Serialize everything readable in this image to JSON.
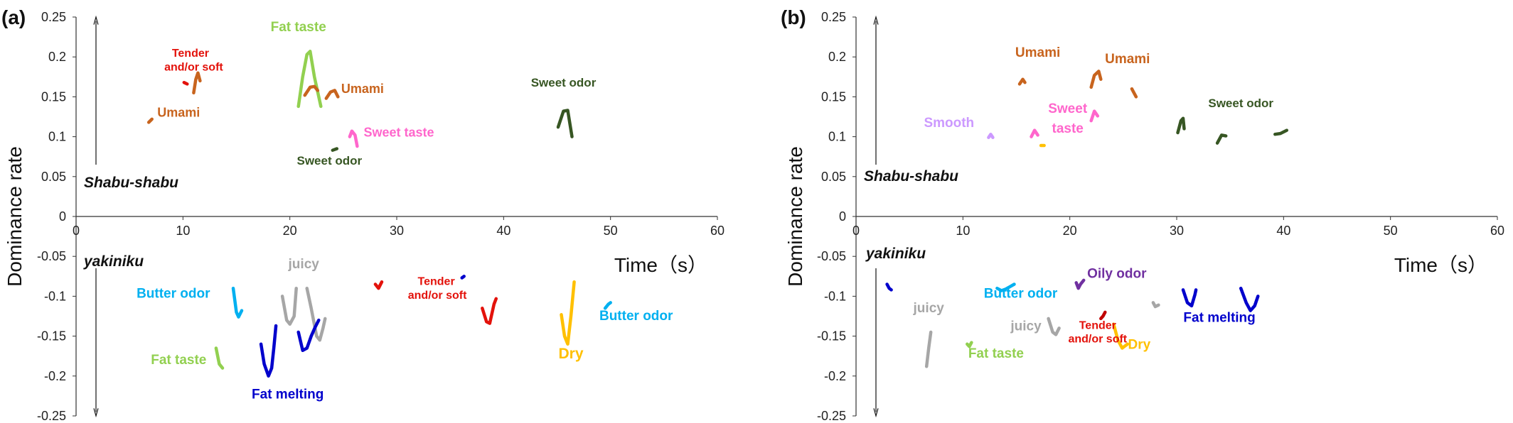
{
  "chart_data": [
    {
      "type": "line",
      "panel_label": "(a)",
      "xlabel": "Time（s）",
      "ylabel": "Dominance rate",
      "xlim": [
        0,
        60
      ],
      "ylim": [
        -0.25,
        0.25
      ],
      "x_ticks": [
        "0",
        "10",
        "20",
        "30",
        "40",
        "50",
        "60"
      ],
      "y_ticks": [
        "0.25",
        "0.2",
        "0.15",
        "0.1",
        "0.05",
        "0",
        "-0.05",
        "-0.1",
        "-0.15",
        "-0.2",
        "-0.25"
      ],
      "group_labels": {
        "top": "Shabu-shabu",
        "bottom": "yakiniku"
      },
      "series": [
        {
          "color": "#E3120B",
          "points": [
            [
              10.1,
              0.168
            ],
            [
              10.4,
              0.166
            ]
          ]
        },
        {
          "color": "#C8641E",
          "points": [
            [
              11.0,
              0.155
            ],
            [
              11.2,
              0.172
            ],
            [
              11.4,
              0.18
            ],
            [
              11.6,
              0.17
            ]
          ]
        },
        {
          "color": "#C8641E",
          "points": [
            [
              6.8,
              0.118
            ],
            [
              7.1,
              0.122
            ]
          ]
        },
        {
          "color": "#92D050",
          "points": [
            [
              20.8,
              0.138
            ],
            [
              21.2,
              0.175
            ],
            [
              21.6,
              0.203
            ],
            [
              21.9,
              0.207
            ],
            [
              22.3,
              0.175
            ],
            [
              22.9,
              0.138
            ]
          ]
        },
        {
          "color": "#C8641E",
          "points": [
            [
              21.4,
              0.152
            ],
            [
              21.9,
              0.162
            ],
            [
              22.3,
              0.163
            ],
            [
              22.6,
              0.158
            ]
          ]
        },
        {
          "color": "#C8641E",
          "points": [
            [
              23.4,
              0.148
            ],
            [
              23.8,
              0.156
            ],
            [
              24.2,
              0.158
            ],
            [
              24.5,
              0.15
            ]
          ]
        },
        {
          "color": "#375623",
          "points": [
            [
              24.0,
              0.083
            ],
            [
              24.4,
              0.085
            ]
          ]
        },
        {
          "color": "#FF66CC",
          "points": [
            [
              25.6,
              0.1
            ],
            [
              25.8,
              0.107
            ],
            [
              26.1,
              0.102
            ],
            [
              26.3,
              0.088
            ]
          ]
        },
        {
          "color": "#375623",
          "points": [
            [
              45.1,
              0.112
            ],
            [
              45.6,
              0.132
            ],
            [
              46.0,
              0.133
            ],
            [
              46.4,
              0.1
            ]
          ]
        },
        {
          "color": "#00B0F0",
          "points": [
            [
              14.7,
              -0.09
            ],
            [
              15.0,
              -0.12
            ],
            [
              15.2,
              -0.126
            ],
            [
              15.5,
              -0.118
            ]
          ]
        },
        {
          "color": "#92D050",
          "points": [
            [
              13.1,
              -0.165
            ],
            [
              13.4,
              -0.185
            ],
            [
              13.7,
              -0.19
            ]
          ]
        },
        {
          "color": "#A6A6A6",
          "points": [
            [
              19.3,
              -0.1
            ],
            [
              19.7,
              -0.13
            ],
            [
              20.0,
              -0.135
            ],
            [
              20.4,
              -0.125
            ],
            [
              20.6,
              -0.09
            ]
          ]
        },
        {
          "color": "#A6A6A6",
          "points": [
            [
              21.6,
              -0.09
            ],
            [
              22.0,
              -0.115
            ],
            [
              22.5,
              -0.15
            ],
            [
              22.8,
              -0.155
            ],
            [
              23.1,
              -0.14
            ],
            [
              23.3,
              -0.128
            ]
          ]
        },
        {
          "color": "#0000CC",
          "points": [
            [
              17.3,
              -0.16
            ],
            [
              17.6,
              -0.185
            ],
            [
              18.0,
              -0.2
            ],
            [
              18.3,
              -0.19
            ],
            [
              18.5,
              -0.165
            ],
            [
              18.7,
              -0.137
            ]
          ]
        },
        {
          "color": "#0000CC",
          "points": [
            [
              20.8,
              -0.145
            ],
            [
              21.2,
              -0.168
            ],
            [
              21.6,
              -0.165
            ],
            [
              22.0,
              -0.15
            ],
            [
              22.4,
              -0.138
            ],
            [
              22.7,
              -0.13
            ]
          ]
        },
        {
          "color": "#E3120B",
          "points": [
            [
              28.0,
              -0.085
            ],
            [
              28.3,
              -0.09
            ],
            [
              28.6,
              -0.082
            ]
          ]
        },
        {
          "color": "#0000CC",
          "points": [
            [
              36.1,
              -0.077
            ],
            [
              36.3,
              -0.075
            ]
          ]
        },
        {
          "color": "#E3120B",
          "points": [
            [
              38.0,
              -0.115
            ],
            [
              38.4,
              -0.132
            ],
            [
              38.7,
              -0.134
            ],
            [
              39.1,
              -0.11
            ],
            [
              39.3,
              -0.103
            ]
          ]
        },
        {
          "color": "#FFC000",
          "points": [
            [
              46.6,
              -0.082
            ],
            [
              46.3,
              -0.125
            ],
            [
              46.0,
              -0.16
            ],
            [
              45.7,
              -0.15
            ],
            [
              45.4,
              -0.123
            ]
          ]
        },
        {
          "color": "#00B0F0",
          "points": [
            [
              49.5,
              -0.115
            ],
            [
              49.8,
              -0.11
            ],
            [
              50.0,
              -0.108
            ]
          ]
        }
      ],
      "annotations": [
        {
          "text": "Tender",
          "x": 10.7,
          "y": 0.2,
          "color": "#E3120B",
          "size": 16
        },
        {
          "text": "and/or soft",
          "x": 11.0,
          "y": 0.183,
          "color": "#E3120B",
          "size": 16
        },
        {
          "text": "Umami",
          "x": 9.6,
          "y": 0.125,
          "color": "#C8641E",
          "size": 18
        },
        {
          "text": "Fat taste",
          "x": 20.8,
          "y": 0.232,
          "color": "#92D050",
          "size": 19
        },
        {
          "text": "Umami",
          "x": 26.8,
          "y": 0.155,
          "color": "#C8641E",
          "size": 18
        },
        {
          "text": "Sweet taste",
          "x": 30.2,
          "y": 0.1,
          "color": "#FF66CC",
          "size": 18
        },
        {
          "text": "Sweet odor",
          "x": 23.7,
          "y": 0.065,
          "color": "#375623",
          "size": 17
        },
        {
          "text": "Sweet odor",
          "x": 45.6,
          "y": 0.163,
          "color": "#375623",
          "size": 17
        },
        {
          "text": "juicy",
          "x": 21.3,
          "y": -0.065,
          "color": "#A6A6A6",
          "size": 19
        },
        {
          "text": "Butter odor",
          "x": 9.1,
          "y": -0.102,
          "color": "#00B0F0",
          "size": 19
        },
        {
          "text": "Tender",
          "x": 33.7,
          "y": -0.086,
          "color": "#E3120B",
          "size": 16
        },
        {
          "text": "and/or soft",
          "x": 33.8,
          "y": -0.103,
          "color": "#E3120B",
          "size": 16
        },
        {
          "text": "Butter odor",
          "x": 52.4,
          "y": -0.13,
          "color": "#00B0F0",
          "size": 19
        },
        {
          "text": "Fat taste",
          "x": 9.6,
          "y": -0.185,
          "color": "#92D050",
          "size": 19
        },
        {
          "text": "Fat melting",
          "x": 19.8,
          "y": -0.228,
          "color": "#0000CC",
          "size": 19
        },
        {
          "text": "Dry",
          "x": 46.3,
          "y": -0.178,
          "color": "#FFC000",
          "size": 21
        }
      ]
    },
    {
      "type": "line",
      "panel_label": "(b)",
      "xlabel": "Time（s）",
      "ylabel": "Dominance rate",
      "xlim": [
        0,
        60
      ],
      "ylim": [
        -0.25,
        0.25
      ],
      "x_ticks": [
        "0",
        "10",
        "20",
        "30",
        "40",
        "50",
        "60"
      ],
      "y_ticks": [
        "0.25",
        "0.2",
        "0.15",
        "0.1",
        "0.05",
        "0",
        "-0.05",
        "-0.1",
        "-0.15",
        "-0.2",
        "-0.25"
      ],
      "group_labels": {
        "top": "Shabu-shabu",
        "bottom": "yakiniku"
      },
      "series": [
        {
          "color": "#C8641E",
          "points": [
            [
              15.3,
              0.166
            ],
            [
              15.6,
              0.172
            ],
            [
              15.8,
              0.168
            ]
          ]
        },
        {
          "color": "#C8641E",
          "points": [
            [
              22.0,
              0.162
            ],
            [
              22.3,
              0.177
            ],
            [
              22.7,
              0.182
            ],
            [
              22.9,
              0.172
            ]
          ]
        },
        {
          "color": "#C8641E",
          "points": [
            [
              25.8,
              0.16
            ],
            [
              26.0,
              0.155
            ],
            [
              26.2,
              0.15
            ]
          ]
        },
        {
          "color": "#CC99FF",
          "points": [
            [
              12.4,
              0.099
            ],
            [
              12.6,
              0.103
            ],
            [
              12.8,
              0.099
            ]
          ]
        },
        {
          "color": "#FF66CC",
          "points": [
            [
              16.4,
              0.1
            ],
            [
              16.7,
              0.108
            ],
            [
              17.0,
              0.102
            ]
          ]
        },
        {
          "color": "#FF66CC",
          "points": [
            [
              22.0,
              0.12
            ],
            [
              22.3,
              0.132
            ],
            [
              22.6,
              0.126
            ]
          ]
        },
        {
          "color": "#FFC000",
          "points": [
            [
              17.3,
              0.089
            ],
            [
              17.6,
              0.089
            ]
          ]
        },
        {
          "color": "#375623",
          "points": [
            [
              30.1,
              0.105
            ],
            [
              30.4,
              0.12
            ],
            [
              30.6,
              0.123
            ],
            [
              30.7,
              0.11
            ]
          ]
        },
        {
          "color": "#375623",
          "points": [
            [
              33.8,
              0.092
            ],
            [
              34.2,
              0.102
            ],
            [
              34.6,
              0.101
            ]
          ]
        },
        {
          "color": "#375623",
          "points": [
            [
              39.2,
              0.103
            ],
            [
              39.7,
              0.104
            ],
            [
              40.3,
              0.108
            ]
          ]
        },
        {
          "color": "#0000CC",
          "points": [
            [
              2.9,
              -0.085
            ],
            [
              3.1,
              -0.09
            ],
            [
              3.3,
              -0.092
            ]
          ]
        },
        {
          "color": "#00B0F0",
          "points": [
            [
              13.2,
              -0.09
            ],
            [
              13.6,
              -0.093
            ],
            [
              14.0,
              -0.091
            ],
            [
              14.4,
              -0.088
            ],
            [
              14.8,
              -0.085
            ]
          ]
        },
        {
          "color": "#A6A6A6",
          "points": [
            [
              7.0,
              -0.145
            ],
            [
              6.8,
              -0.165
            ],
            [
              6.6,
              -0.188
            ]
          ]
        },
        {
          "color": "#92D050",
          "points": [
            [
              10.4,
              -0.16
            ],
            [
              10.6,
              -0.163
            ],
            [
              10.8,
              -0.158
            ]
          ]
        },
        {
          "color": "#A6A6A6",
          "points": [
            [
              18.0,
              -0.128
            ],
            [
              18.4,
              -0.145
            ],
            [
              18.7,
              -0.148
            ],
            [
              19.0,
              -0.14
            ]
          ]
        },
        {
          "color": "#7030A0",
          "points": [
            [
              20.6,
              -0.083
            ],
            [
              20.8,
              -0.09
            ],
            [
              21.0,
              -0.085
            ],
            [
              21.3,
              -0.08
            ]
          ]
        },
        {
          "color": "#C00000",
          "points": [
            [
              22.9,
              -0.128
            ],
            [
              23.1,
              -0.125
            ],
            [
              23.3,
              -0.12
            ]
          ]
        },
        {
          "color": "#FFC000",
          "points": [
            [
              24.1,
              -0.135
            ],
            [
              24.5,
              -0.155
            ],
            [
              24.9,
              -0.165
            ],
            [
              25.4,
              -0.16
            ]
          ]
        },
        {
          "color": "#A6A6A6",
          "points": [
            [
              27.8,
              -0.108
            ],
            [
              28.0,
              -0.113
            ],
            [
              28.3,
              -0.111
            ]
          ]
        },
        {
          "color": "#0000CC",
          "points": [
            [
              30.6,
              -0.092
            ],
            [
              31.0,
              -0.108
            ],
            [
              31.4,
              -0.112
            ],
            [
              31.7,
              -0.098
            ],
            [
              31.8,
              -0.092
            ]
          ]
        },
        {
          "color": "#0000CC",
          "points": [
            [
              36.0,
              -0.09
            ],
            [
              36.5,
              -0.108
            ],
            [
              36.9,
              -0.118
            ],
            [
              37.3,
              -0.112
            ],
            [
              37.6,
              -0.1
            ]
          ]
        }
      ],
      "annotations": [
        {
          "text": "Umami",
          "x": 17.0,
          "y": 0.2,
          "color": "#C8641E",
          "size": 19
        },
        {
          "text": "Umami",
          "x": 25.4,
          "y": 0.192,
          "color": "#C8641E",
          "size": 19
        },
        {
          "text": "Sweet odor",
          "x": 36.0,
          "y": 0.137,
          "color": "#375623",
          "size": 17
        },
        {
          "text": "Smooth",
          "x": 8.7,
          "y": 0.112,
          "color": "#CC99FF",
          "size": 19
        },
        {
          "text": "Sweet",
          "x": 19.8,
          "y": 0.13,
          "color": "#FF66CC",
          "size": 19
        },
        {
          "text": "taste",
          "x": 19.8,
          "y": 0.105,
          "color": "#FF66CC",
          "size": 19
        },
        {
          "text": "Oily odor",
          "x": 24.4,
          "y": -0.077,
          "color": "#7030A0",
          "size": 19
        },
        {
          "text": "Butter odor",
          "x": 15.4,
          "y": -0.102,
          "color": "#00B0F0",
          "size": 19
        },
        {
          "text": "juicy",
          "x": 6.8,
          "y": -0.12,
          "color": "#A6A6A6",
          "size": 19
        },
        {
          "text": "juicy",
          "x": 15.9,
          "y": -0.143,
          "color": "#A6A6A6",
          "size": 19
        },
        {
          "text": "Tender",
          "x": 22.6,
          "y": -0.141,
          "color": "#E3120B",
          "size": 16
        },
        {
          "text": "and/or soft",
          "x": 22.6,
          "y": -0.158,
          "color": "#E3120B",
          "size": 16
        },
        {
          "text": "Dry",
          "x": 26.5,
          "y": -0.166,
          "color": "#FFC000",
          "size": 19
        },
        {
          "text": "Fat taste",
          "x": 13.1,
          "y": -0.177,
          "color": "#92D050",
          "size": 19
        },
        {
          "text": "Fat melting",
          "x": 34.0,
          "y": -0.132,
          "color": "#0000CC",
          "size": 19
        }
      ]
    }
  ]
}
